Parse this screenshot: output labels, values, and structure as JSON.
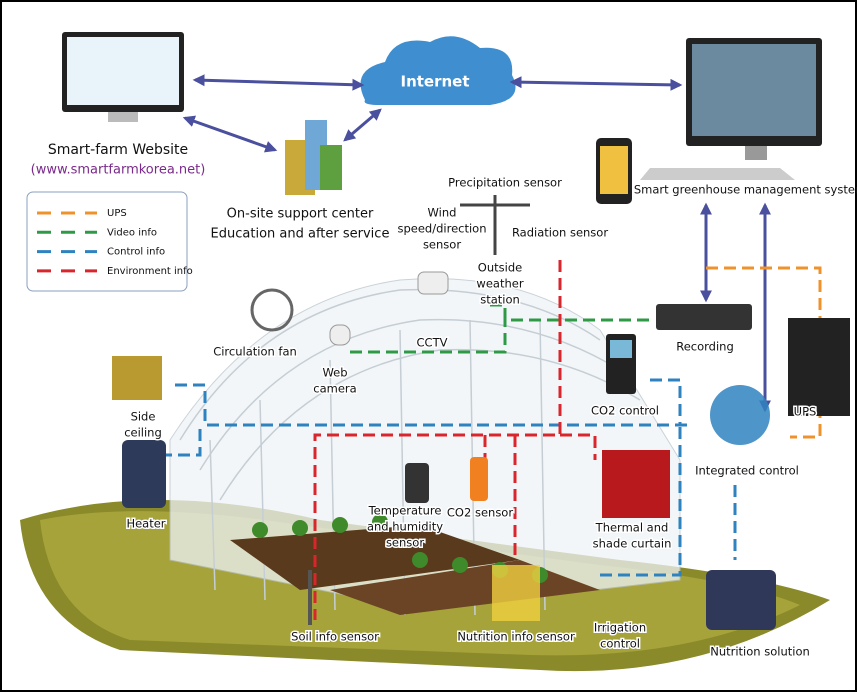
{
  "internet": "Internet",
  "website": {
    "title": "Smart-farm Website",
    "url": "(www.smartfarmkorea.net)"
  },
  "support": {
    "lines": [
      "On-site support center",
      "Education and after service"
    ]
  },
  "management": "Smart greenhouse management system",
  "legend": [
    {
      "label": "UPS",
      "color": "#f0922c"
    },
    {
      "label": "Video info",
      "color": "#2f9a46"
    },
    {
      "label": "Control info",
      "color": "#2f82c0"
    },
    {
      "label": "Environment info",
      "color": "#d9262c"
    }
  ],
  "nodes": [
    {
      "lines": [
        "Precipitation sensor"
      ]
    },
    {
      "lines": [
        "Wind",
        "speed/direction",
        "sensor"
      ]
    },
    {
      "lines": [
        "Radiation sensor"
      ]
    },
    {
      "lines": [
        "Outside",
        "weather",
        "station"
      ]
    },
    {
      "lines": [
        "Circulation fan"
      ]
    },
    {
      "lines": [
        "CCTV"
      ]
    },
    {
      "lines": [
        "Web",
        "camera"
      ]
    },
    {
      "lines": [
        "Recording"
      ]
    },
    {
      "lines": [
        "Side",
        "ceiling"
      ]
    },
    {
      "lines": [
        "CO2 control"
      ]
    },
    {
      "lines": [
        "UPS"
      ]
    },
    {
      "lines": [
        "Integrated control"
      ]
    },
    {
      "lines": [
        "Heater"
      ]
    },
    {
      "lines": [
        "Temperature",
        "and humidity",
        "sensor"
      ]
    },
    {
      "lines": [
        "CO2 sensor"
      ]
    },
    {
      "lines": [
        "Thermal and",
        "shade curtain"
      ]
    },
    {
      "lines": [
        "Soil info sensor"
      ]
    },
    {
      "lines": [
        "Nutrition info sensor"
      ]
    },
    {
      "lines": [
        "Irrigation",
        "control"
      ]
    },
    {
      "lines": [
        "Nutrition solution"
      ]
    }
  ]
}
